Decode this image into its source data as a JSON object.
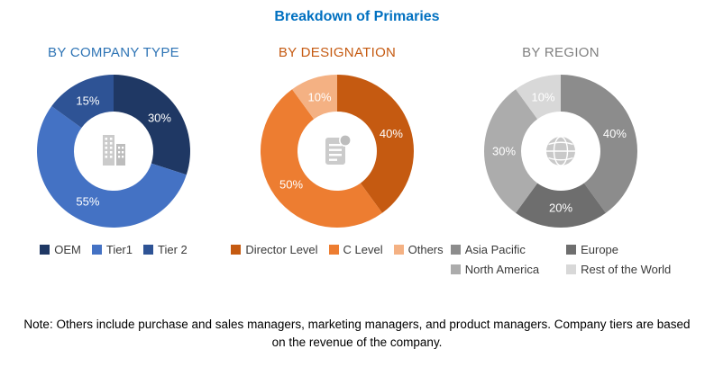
{
  "title": "Breakdown of Primaries",
  "title_color": "#0070C0",
  "note": "Note: Others include purchase and sales managers, marketing managers, and product managers. Company tiers are based on the revenue of the company.",
  "chart_data": [
    {
      "type": "pie",
      "subtype": "donut",
      "title": "BY COMPANY TYPE",
      "heading_color": "#2E74B5",
      "center_icon": "building-icon",
      "legend_position": "bottom",
      "legend_columns": 1,
      "value_label_format": "percent",
      "segments": [
        {
          "label": "OEM",
          "value": 30,
          "color": "#1F3864"
        },
        {
          "label": "Tier1",
          "value": 55,
          "color": "#4472C4"
        },
        {
          "label": "Tier 2",
          "value": 15,
          "color": "#2E5395"
        }
      ]
    },
    {
      "type": "pie",
      "subtype": "donut",
      "title": "BY DESIGNATION",
      "heading_color": "#C55A11",
      "center_icon": "document-icon",
      "legend_position": "bottom",
      "legend_columns": 1,
      "value_label_format": "percent",
      "segments": [
        {
          "label": "Director Level",
          "value": 40,
          "color": "#C55A11"
        },
        {
          "label": "C Level",
          "value": 50,
          "color": "#ED7D31"
        },
        {
          "label": "Others",
          "value": 10,
          "color": "#F4B183"
        }
      ]
    },
    {
      "type": "pie",
      "subtype": "donut",
      "title": "BY REGION",
      "heading_color": "#808080",
      "center_icon": "globe-icon",
      "legend_position": "bottom",
      "legend_columns": 2,
      "value_label_format": "percent",
      "segments": [
        {
          "label": "Asia Pacific",
          "value": 40,
          "color": "#8C8C8C"
        },
        {
          "label": "Europe",
          "value": 20,
          "color": "#6E6E6E"
        },
        {
          "label": "North America",
          "value": 30,
          "color": "#ACACAC"
        },
        {
          "label": "Rest of the World",
          "value": 10,
          "color": "#D8D8D8"
        }
      ]
    }
  ]
}
